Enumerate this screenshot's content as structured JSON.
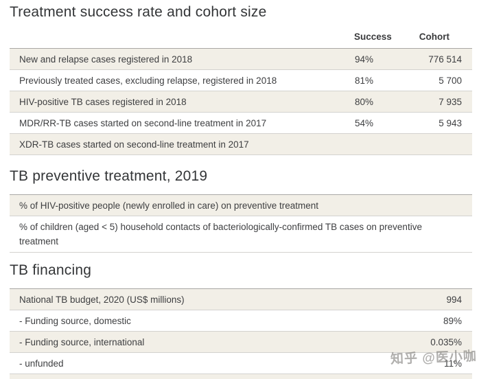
{
  "watermark": "知乎 @医小咖",
  "treatment_table": {
    "title": "Treatment success rate and cohort size",
    "columns": {
      "success": "Success",
      "cohort": "Cohort"
    },
    "rows": [
      {
        "label": "New and relapse cases registered in 2018",
        "success": "94%",
        "cohort": "776 514"
      },
      {
        "label": "Previously treated cases, excluding relapse, registered in 2018",
        "success": "81%",
        "cohort": "5 700"
      },
      {
        "label": "HIV-positive TB cases registered in 2018",
        "success": "80%",
        "cohort": "7 935"
      },
      {
        "label": "MDR/RR-TB cases started on second-line treatment in 2017",
        "success": "54%",
        "cohort": "5 943"
      },
      {
        "label": "XDR-TB cases started on second-line treatment in 2017",
        "success": "",
        "cohort": ""
      }
    ]
  },
  "preventive_table": {
    "title": "TB preventive treatment, 2019",
    "rows": [
      {
        "label": "% of HIV-positive people (newly enrolled in care) on preventive treatment",
        "value": "",
        "tall": false
      },
      {
        "label": "% of children (aged < 5) household contacts of bacteriologically-confirmed TB cases on preventive treatment",
        "value": "",
        "tall": true
      }
    ]
  },
  "financing_table": {
    "title": "TB financing",
    "rows": [
      {
        "label": "National TB budget, 2020 (US$ millions)",
        "value": "994"
      },
      {
        "label": "- Funding source, domestic",
        "value": "89%"
      },
      {
        "label": "- Funding source, international",
        "value": "0.035%"
      },
      {
        "label": "- unfunded",
        "value": "11%"
      }
    ]
  }
}
